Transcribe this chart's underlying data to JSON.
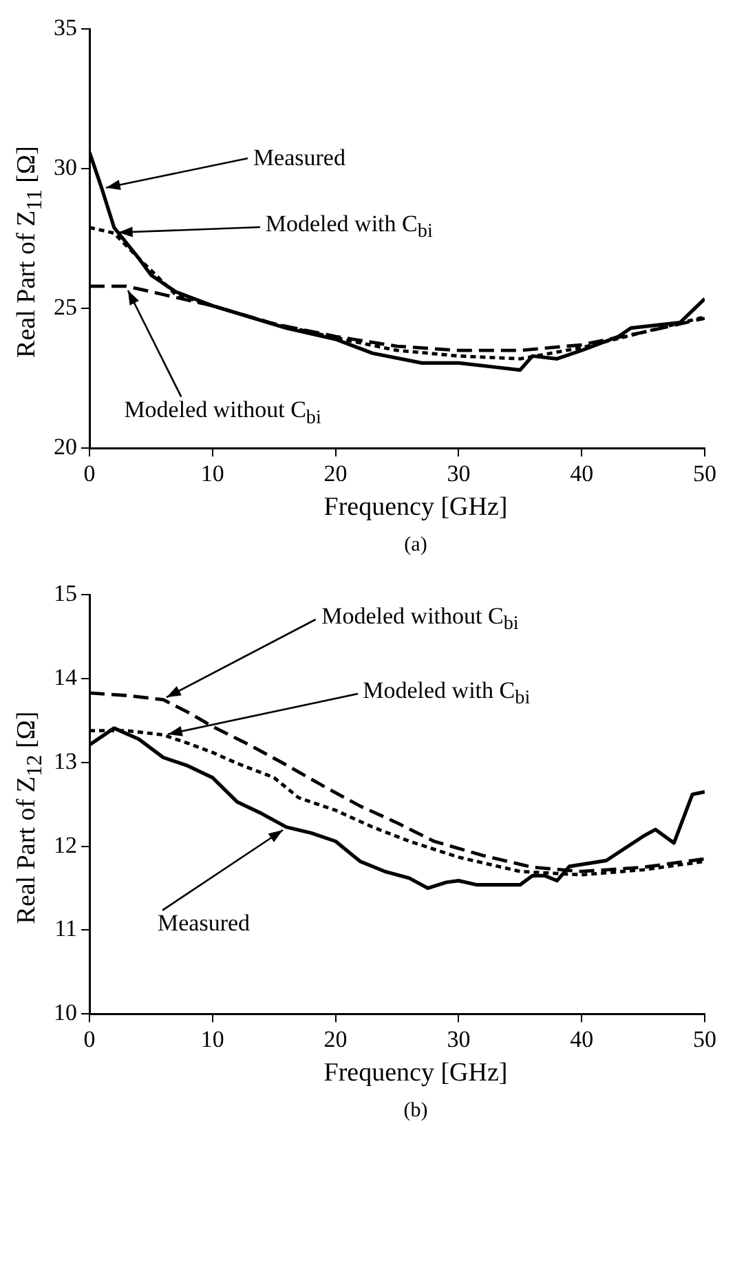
{
  "chart_data": [
    {
      "type": "line",
      "title": "(a)",
      "xlabel": "Frequency  [GHz]",
      "ylabel": "Real Part of Z$_{11}$  [Ω]",
      "xlim": [
        0,
        50
      ],
      "xticks": [
        0,
        10,
        20,
        30,
        40,
        50
      ],
      "ylim": [
        20,
        35
      ],
      "yticks": [
        20,
        25,
        30,
        35
      ],
      "grid": false,
      "legend": false,
      "marker": "none",
      "annotations": [
        {
          "text": "Measured",
          "x": 1,
          "y": 29.3
        },
        {
          "text": "Modeled with C$_{bi}$",
          "x": 2,
          "y": 27.7
        },
        {
          "text": "Modeled without C$_{bi}$",
          "x": 3,
          "y": 25.8
        }
      ],
      "series": [
        {
          "color": "#000000",
          "line_style": "solid",
          "x": [
            0,
            1,
            2,
            4,
            5,
            7,
            10,
            13,
            16,
            20,
            23,
            27,
            30,
            33,
            35,
            36,
            38,
            40,
            43,
            44,
            46,
            48,
            50
          ],
          "values": [
            30.6,
            29.3,
            27.9,
            26.8,
            26.2,
            25.6,
            25.1,
            24.7,
            24.3,
            23.9,
            23.4,
            23.05,
            23.05,
            22.9,
            22.8,
            23.3,
            23.2,
            23.5,
            24.0,
            24.3,
            24.4,
            24.5,
            25.35
          ]
        },
        {
          "color": "#000000",
          "line_style": "dotted",
          "x": [
            0,
            2,
            4,
            7,
            10,
            15,
            20,
            25,
            30,
            35,
            40,
            45,
            50
          ],
          "values": [
            27.9,
            27.7,
            26.8,
            25.5,
            25.1,
            24.45,
            23.95,
            23.5,
            23.3,
            23.2,
            23.6,
            24.15,
            24.7
          ]
        },
        {
          "color": "#000000",
          "line_style": "dashed",
          "x": [
            0,
            3,
            6,
            10,
            15,
            20,
            25,
            30,
            35,
            40,
            45,
            50
          ],
          "values": [
            25.8,
            25.8,
            25.5,
            25.1,
            24.45,
            24.0,
            23.65,
            23.5,
            23.5,
            23.7,
            24.15,
            24.65
          ]
        }
      ]
    },
    {
      "type": "line",
      "title": "(b)",
      "xlabel": "Frequency  [GHz]",
      "ylabel": "Real Part of Z$_{12}$  [Ω]",
      "xlim": [
        0,
        50
      ],
      "xticks": [
        0,
        10,
        20,
        30,
        40,
        50
      ],
      "ylim": [
        10,
        15
      ],
      "yticks": [
        10,
        11,
        12,
        13,
        14,
        15
      ],
      "grid": false,
      "legend": false,
      "marker": "none",
      "annotations": [
        {
          "text": "Modeled without C$_{bi}$",
          "x": 6,
          "y": 13.75
        },
        {
          "text": "Modeled with C$_{bi}$",
          "x": 6,
          "y": 13.33
        },
        {
          "text": "Measured",
          "x": 16,
          "y": 12.23
        }
      ],
      "series": [
        {
          "color": "#000000",
          "line_style": "solid",
          "x": [
            0,
            2,
            4,
            6,
            8,
            10,
            12,
            14,
            16,
            18,
            20,
            22,
            24,
            26,
            27.5,
            29,
            30,
            31.5,
            35,
            36,
            37,
            38,
            39,
            42,
            45,
            46,
            47.5,
            49,
            50
          ],
          "values": [
            13.21,
            13.41,
            13.28,
            13.06,
            12.96,
            12.82,
            12.53,
            12.39,
            12.23,
            12.16,
            12.06,
            11.82,
            11.7,
            11.62,
            11.5,
            11.57,
            11.59,
            11.54,
            11.54,
            11.65,
            11.65,
            11.59,
            11.76,
            11.83,
            12.12,
            12.2,
            12.04,
            12.62,
            12.65
          ]
        },
        {
          "color": "#000000",
          "line_style": "dotted",
          "x": [
            0,
            3,
            6,
            8,
            10,
            12,
            15,
            17,
            20,
            23,
            26,
            30,
            35,
            40,
            45,
            50
          ],
          "values": [
            13.38,
            13.38,
            13.33,
            13.23,
            13.12,
            12.99,
            12.82,
            12.58,
            12.43,
            12.23,
            12.06,
            11.87,
            11.7,
            11.66,
            11.72,
            11.82
          ]
        },
        {
          "color": "#000000",
          "line_style": "dashed",
          "x": [
            0,
            3,
            6,
            8,
            10,
            13,
            16,
            19,
            22,
            25,
            28,
            32,
            36,
            40,
            45,
            50
          ],
          "values": [
            13.83,
            13.8,
            13.75,
            13.6,
            13.43,
            13.21,
            12.97,
            12.72,
            12.48,
            12.28,
            12.06,
            11.89,
            11.75,
            11.7,
            11.75,
            11.85
          ]
        }
      ]
    }
  ]
}
